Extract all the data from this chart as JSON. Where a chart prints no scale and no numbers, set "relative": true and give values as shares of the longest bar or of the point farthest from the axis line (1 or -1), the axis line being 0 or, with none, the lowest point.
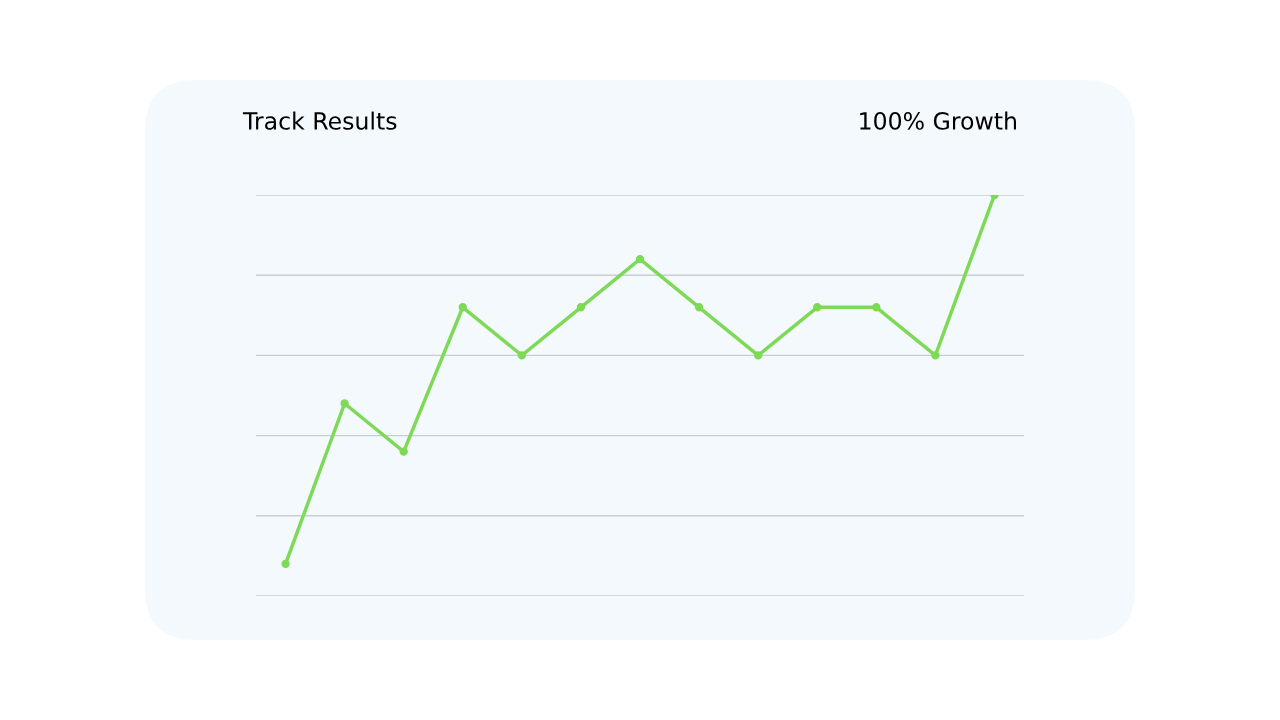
{
  "chart_data": {
    "type": "line",
    "title": "Track Results",
    "annotations": [
      "100% Growth"
    ],
    "categories": [
      null,
      null,
      null,
      null,
      null,
      null,
      null,
      null,
      null,
      null,
      null,
      null,
      null
    ],
    "series": [
      {
        "color": "#7ed957",
        "values": [
          0.08,
          0.48,
          0.36,
          0.72,
          0.6,
          0.72,
          0.84,
          0.72,
          0.6,
          0.72,
          0.72,
          0.6,
          1.0
        ]
      }
    ],
    "relative": true,
    "grid": "y",
    "marker": "circle",
    "line_style": "solid",
    "legend": false
  }
}
